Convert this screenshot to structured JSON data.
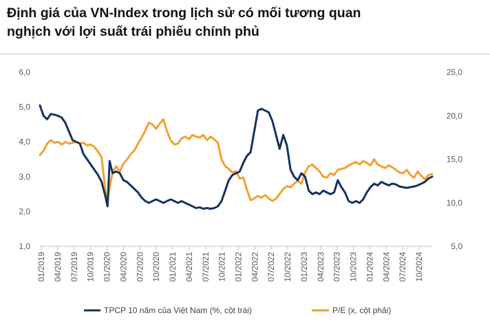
{
  "title_line1": "Định giá của VN-Index trong lịch sử có mối tương quan",
  "title_line2": "nghịch với lợi suất trái phiếu chính phủ",
  "chart_data": {
    "type": "line",
    "y_left": {
      "ylim": [
        1.0,
        6.0
      ],
      "ticks": [
        "1,0",
        "2,0",
        "3,0",
        "4,0",
        "5,0",
        "6,0"
      ]
    },
    "y_right": {
      "ylim": [
        5.0,
        25.0
      ],
      "ticks": [
        "5,0",
        "10,0",
        "15,0",
        "20,0",
        "25,0"
      ]
    },
    "x_ticks": [
      "01/2019",
      "04/2019",
      "07/2019",
      "10/2019",
      "01/2020",
      "04/2020",
      "07/2020",
      "10/2020",
      "01/2021",
      "04/2021",
      "07/2021",
      "10/2021",
      "01/2022",
      "04/2022",
      "07/2022",
      "10/2022",
      "01/2023",
      "04/2023",
      "07/2023",
      "10/2023",
      "01/2024",
      "04/2024",
      "07/2024",
      "10/2024"
    ],
    "grid": false,
    "legend": "bottom",
    "series": [
      {
        "name": "TPCP 10 năm của Việt Nam (%, cột trái)",
        "axis": "left",
        "color": "#16305f",
        "points": [
          [
            0,
            5.05
          ],
          [
            0.5,
            4.75
          ],
          [
            1.0,
            4.65
          ],
          [
            1.5,
            4.8
          ],
          [
            2.0,
            4.78
          ],
          [
            2.5,
            4.75
          ],
          [
            3.0,
            4.7
          ],
          [
            3.5,
            4.55
          ],
          [
            4.0,
            4.3
          ],
          [
            4.5,
            4.05
          ],
          [
            5.0,
            4.0
          ],
          [
            5.5,
            3.95
          ],
          [
            6.0,
            3.65
          ],
          [
            6.5,
            3.5
          ],
          [
            7.0,
            3.35
          ],
          [
            7.5,
            3.2
          ],
          [
            8.0,
            3.05
          ],
          [
            8.5,
            2.85
          ],
          [
            9.0,
            2.45
          ],
          [
            9.3,
            2.15
          ],
          [
            9.6,
            3.45
          ],
          [
            10.0,
            3.1
          ],
          [
            10.5,
            3.15
          ],
          [
            11.0,
            3.1
          ],
          [
            11.5,
            2.9
          ],
          [
            12.0,
            2.85
          ],
          [
            12.5,
            2.75
          ],
          [
            13.0,
            2.65
          ],
          [
            13.5,
            2.55
          ],
          [
            14.0,
            2.4
          ],
          [
            14.5,
            2.3
          ],
          [
            15.0,
            2.25
          ],
          [
            15.5,
            2.3
          ],
          [
            16.0,
            2.35
          ],
          [
            16.5,
            2.3
          ],
          [
            17.0,
            2.25
          ],
          [
            17.5,
            2.3
          ],
          [
            18.0,
            2.35
          ],
          [
            18.5,
            2.3
          ],
          [
            19.0,
            2.25
          ],
          [
            19.5,
            2.3
          ],
          [
            20.0,
            2.25
          ],
          [
            20.5,
            2.2
          ],
          [
            21.0,
            2.15
          ],
          [
            21.5,
            2.1
          ],
          [
            22.0,
            2.12
          ],
          [
            22.5,
            2.08
          ],
          [
            23.0,
            2.1
          ],
          [
            23.5,
            2.08
          ],
          [
            24.0,
            2.1
          ],
          [
            24.5,
            2.15
          ],
          [
            25.0,
            2.3
          ],
          [
            25.5,
            2.6
          ],
          [
            26.0,
            2.9
          ],
          [
            26.5,
            3.05
          ],
          [
            27.0,
            3.1
          ],
          [
            27.5,
            3.15
          ],
          [
            28.0,
            3.4
          ],
          [
            28.5,
            3.6
          ],
          [
            29.0,
            3.7
          ],
          [
            29.5,
            4.3
          ],
          [
            30.0,
            4.9
          ],
          [
            30.5,
            4.95
          ],
          [
            31.0,
            4.9
          ],
          [
            31.5,
            4.85
          ],
          [
            32.0,
            4.6
          ],
          [
            32.5,
            4.2
          ],
          [
            33.0,
            3.8
          ],
          [
            33.5,
            4.2
          ],
          [
            34.0,
            3.9
          ],
          [
            34.5,
            3.2
          ],
          [
            35.0,
            3.0
          ],
          [
            35.5,
            2.9
          ],
          [
            36.0,
            3.1
          ],
          [
            36.5,
            3.0
          ],
          [
            37.0,
            2.6
          ],
          [
            37.5,
            2.5
          ],
          [
            38.0,
            2.55
          ],
          [
            38.5,
            2.5
          ],
          [
            39.0,
            2.6
          ],
          [
            39.5,
            2.55
          ],
          [
            40.0,
            2.5
          ],
          [
            40.5,
            2.55
          ],
          [
            41.0,
            2.9
          ],
          [
            41.5,
            2.7
          ],
          [
            42.0,
            2.55
          ],
          [
            42.5,
            2.3
          ],
          [
            43.0,
            2.25
          ],
          [
            43.5,
            2.3
          ],
          [
            44.0,
            2.25
          ],
          [
            44.5,
            2.35
          ],
          [
            45.0,
            2.55
          ],
          [
            45.5,
            2.7
          ],
          [
            46.0,
            2.8
          ],
          [
            46.5,
            2.75
          ],
          [
            47.0,
            2.85
          ],
          [
            47.5,
            2.8
          ],
          [
            48.0,
            2.75
          ],
          [
            48.5,
            2.8
          ],
          [
            49.0,
            2.78
          ],
          [
            49.5,
            2.72
          ],
          [
            50.0,
            2.7
          ],
          [
            50.5,
            2.68
          ],
          [
            51.0,
            2.7
          ],
          [
            51.5,
            2.72
          ],
          [
            52.0,
            2.75
          ],
          [
            52.5,
            2.8
          ],
          [
            53.0,
            2.85
          ],
          [
            53.5,
            2.95
          ],
          [
            54.0,
            3.0
          ]
        ]
      },
      {
        "name": "P/E (x, cột phải)",
        "axis": "right",
        "color": "#f4a030",
        "points": [
          [
            0,
            15.5
          ],
          [
            0.5,
            16.0
          ],
          [
            1.0,
            16.8
          ],
          [
            1.5,
            17.2
          ],
          [
            2.0,
            16.9
          ],
          [
            2.5,
            17.0
          ],
          [
            3.0,
            16.7
          ],
          [
            3.5,
            17.0
          ],
          [
            4.0,
            16.8
          ],
          [
            4.5,
            16.9
          ],
          [
            5.0,
            17.0
          ],
          [
            5.5,
            16.8
          ],
          [
            6.0,
            16.9
          ],
          [
            6.5,
            16.6
          ],
          [
            7.0,
            16.7
          ],
          [
            7.5,
            16.4
          ],
          [
            8.0,
            15.9
          ],
          [
            8.5,
            15.2
          ],
          [
            9.0,
            11.5
          ],
          [
            9.3,
            10.0
          ],
          [
            9.6,
            11.8
          ],
          [
            10.0,
            13.5
          ],
          [
            10.5,
            14.2
          ],
          [
            11.0,
            13.6
          ],
          [
            11.5,
            14.5
          ],
          [
            12.0,
            15.0
          ],
          [
            12.5,
            15.6
          ],
          [
            13.0,
            16.0
          ],
          [
            13.5,
            16.8
          ],
          [
            14.0,
            17.5
          ],
          [
            14.5,
            18.3
          ],
          [
            15.0,
            19.2
          ],
          [
            15.5,
            19.0
          ],
          [
            16.0,
            18.5
          ],
          [
            16.5,
            19.1
          ],
          [
            17.0,
            19.6
          ],
          [
            17.5,
            18.2
          ],
          [
            18.0,
            17.2
          ],
          [
            18.5,
            16.7
          ],
          [
            19.0,
            16.8
          ],
          [
            19.5,
            17.4
          ],
          [
            20.0,
            17.6
          ],
          [
            20.5,
            17.3
          ],
          [
            21.0,
            17.8
          ],
          [
            21.5,
            17.6
          ],
          [
            22.0,
            17.5
          ],
          [
            22.5,
            17.8
          ],
          [
            23.0,
            17.2
          ],
          [
            23.5,
            17.6
          ],
          [
            24.0,
            17.3
          ],
          [
            24.5,
            16.9
          ],
          [
            25.0,
            15.0
          ],
          [
            25.5,
            14.2
          ],
          [
            26.0,
            13.9
          ],
          [
            26.5,
            13.5
          ],
          [
            27.0,
            13.6
          ],
          [
            27.5,
            12.8
          ],
          [
            28.0,
            12.9
          ],
          [
            28.5,
            11.5
          ],
          [
            29.0,
            10.3
          ],
          [
            29.5,
            10.5
          ],
          [
            30.0,
            10.8
          ],
          [
            30.5,
            10.6
          ],
          [
            31.0,
            10.9
          ],
          [
            31.5,
            10.5
          ],
          [
            32.0,
            10.2
          ],
          [
            32.5,
            10.5
          ],
          [
            33.0,
            11.0
          ],
          [
            33.5,
            11.6
          ],
          [
            34.0,
            11.9
          ],
          [
            34.5,
            11.8
          ],
          [
            35.0,
            12.2
          ],
          [
            35.5,
            12.5
          ],
          [
            36.0,
            12.2
          ],
          [
            36.5,
            13.5
          ],
          [
            37.0,
            14.2
          ],
          [
            37.5,
            14.4
          ],
          [
            38.0,
            14.0
          ],
          [
            38.5,
            13.6
          ],
          [
            39.0,
            13.0
          ],
          [
            39.5,
            12.9
          ],
          [
            40.0,
            13.4
          ],
          [
            40.5,
            13.2
          ],
          [
            41.0,
            13.8
          ],
          [
            41.5,
            13.9
          ],
          [
            42.0,
            14.0
          ],
          [
            42.5,
            14.3
          ],
          [
            43.0,
            14.5
          ],
          [
            43.5,
            14.7
          ],
          [
            44.0,
            14.4
          ],
          [
            44.5,
            14.8
          ],
          [
            45.0,
            14.6
          ],
          [
            45.5,
            14.3
          ],
          [
            46.0,
            15.0
          ],
          [
            46.5,
            14.4
          ],
          [
            47.0,
            14.2
          ],
          [
            47.5,
            14.0
          ],
          [
            48.0,
            14.3
          ],
          [
            48.5,
            14.1
          ],
          [
            49.0,
            13.8
          ],
          [
            49.5,
            13.5
          ],
          [
            50.0,
            13.4
          ],
          [
            50.5,
            13.8
          ],
          [
            51.0,
            13.2
          ],
          [
            51.5,
            12.9
          ],
          [
            52.0,
            13.6
          ],
          [
            52.5,
            13.1
          ],
          [
            53.0,
            12.7
          ],
          [
            53.5,
            13.2
          ],
          [
            54.0,
            13.3
          ]
        ]
      }
    ]
  }
}
